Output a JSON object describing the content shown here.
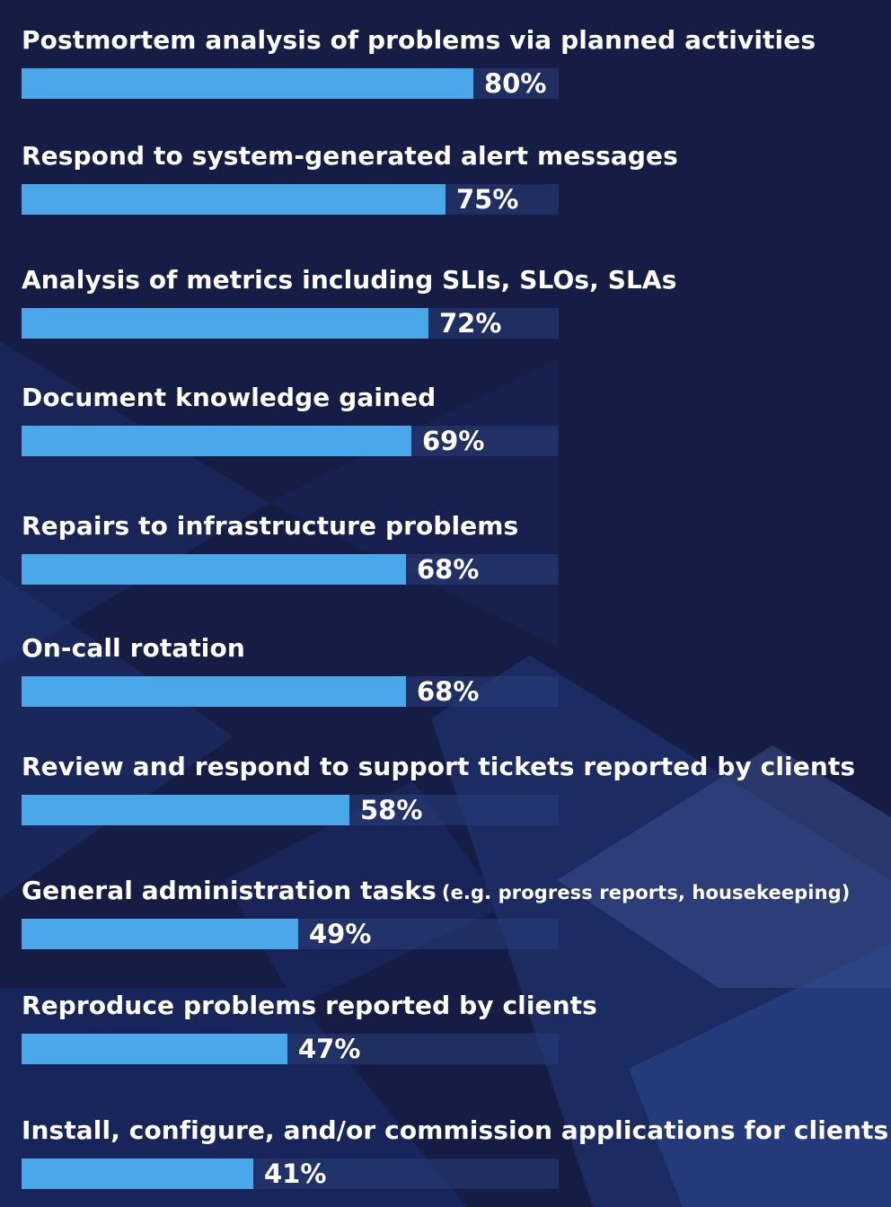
{
  "chart_data": {
    "type": "bar",
    "orientation": "horizontal",
    "title": "",
    "xlabel": "",
    "ylabel": "",
    "xlim": [
      0,
      100
    ],
    "grid": false,
    "legend": "none",
    "colors": {
      "background": "#151d45",
      "bar": "#4aa8ea",
      "track": "#2a3e78",
      "text": "#ffffff"
    },
    "categories": [
      "Postmortem analysis of problems via planned activities",
      "Respond to system-generated alert messages",
      "Analysis of metrics including SLIs, SLOs, SLAs",
      "Document knowledge gained",
      "Repairs to infrastructure problems",
      "On-call rotation",
      "Review and respond to support tickets reported by clients",
      "General administration tasks",
      "Reproduce problems reported by clients",
      "Install, configure, and/or commission applications for clients"
    ],
    "category_notes": [
      "",
      "",
      "",
      "",
      "",
      "",
      "",
      "(e.g. progress reports, housekeeping)",
      "",
      ""
    ],
    "values": [
      80,
      75,
      72,
      69,
      68,
      68,
      58,
      49,
      47,
      41
    ],
    "value_labels": [
      "80%",
      "75%",
      "72%",
      "69%",
      "68%",
      "68%",
      "58%",
      "49%",
      "47%",
      "41%"
    ]
  }
}
